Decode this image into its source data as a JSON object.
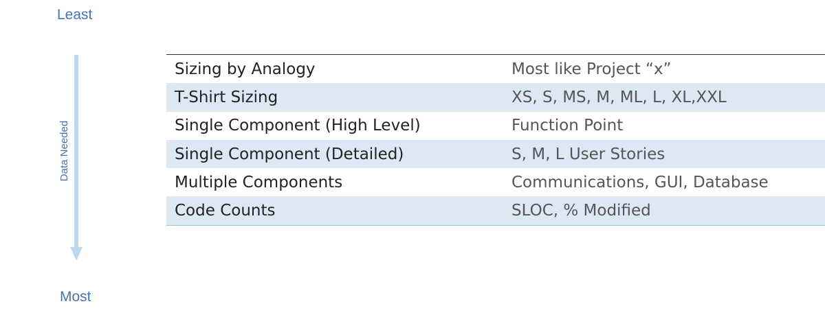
{
  "scale": {
    "top": "Least",
    "bottom": "Most",
    "axis_label": "Data Needed"
  },
  "table": {
    "rows": [
      [
        "Sizing by Analogy",
        "Most like Project “x”"
      ],
      [
        "T-Shirt Sizing",
        "XS, S, MS, M, ML, L, XL,XXL"
      ],
      [
        "Single Component (High Level)",
        "Function Point"
      ],
      [
        "Single Component (Detailed)",
        "S, M, L User Stories"
      ],
      [
        "Multiple Components",
        "Communications, GUI, Database"
      ],
      [
        "Code Counts",
        "SLOC, % Modified"
      ]
    ]
  }
}
